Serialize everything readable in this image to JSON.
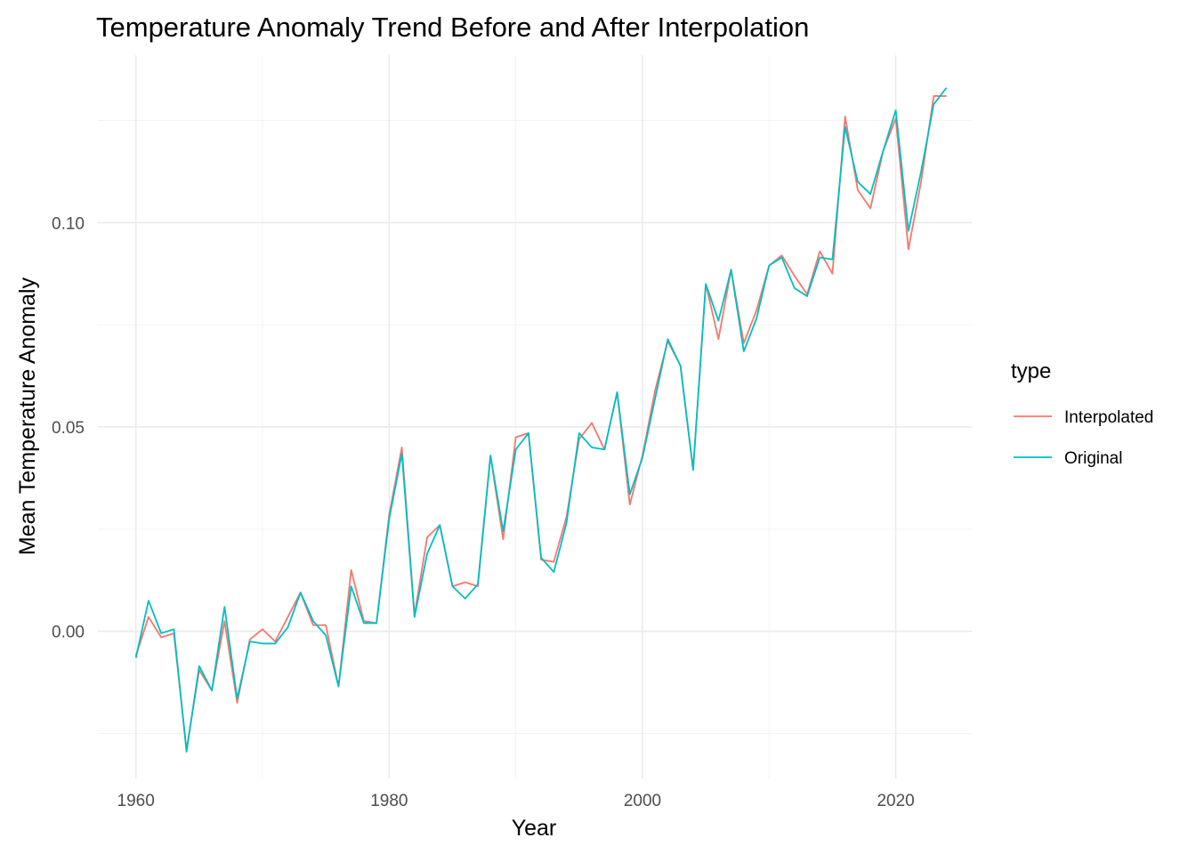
{
  "chart_data": {
    "type": "line",
    "title": "Temperature Anomaly Trend Before and After Interpolation",
    "xlabel": "Year",
    "ylabel": "Mean Temperature Anomaly",
    "xlim": [
      1957,
      2026
    ],
    "ylim": [
      -0.036,
      0.141
    ],
    "x_ticks": [
      1960,
      1980,
      2000,
      2020
    ],
    "x_tick_labels": [
      "1960",
      "1980",
      "2000",
      "2020"
    ],
    "y_ticks": [
      0.0,
      0.05,
      0.1
    ],
    "y_tick_labels": [
      "0.00",
      "0.05",
      "0.10"
    ],
    "grid": true,
    "legend": {
      "title": "type",
      "position": "right"
    },
    "x": [
      1960,
      1961,
      1962,
      1963,
      1964,
      1965,
      1966,
      1967,
      1968,
      1969,
      1970,
      1971,
      1972,
      1973,
      1974,
      1975,
      1976,
      1977,
      1978,
      1979,
      1980,
      1981,
      1982,
      1983,
      1984,
      1985,
      1986,
      1987,
      1988,
      1989,
      1990,
      1991,
      1992,
      1993,
      1994,
      1995,
      1996,
      1997,
      1998,
      1999,
      2000,
      2001,
      2002,
      2003,
      2004,
      2005,
      2006,
      2007,
      2008,
      2009,
      2010,
      2011,
      2012,
      2013,
      2014,
      2015,
      2016,
      2017,
      2018,
      2019,
      2020,
      2021,
      2022,
      2023,
      2024
    ],
    "series": [
      {
        "name": "Interpolated",
        "color": "#F8766D",
        "values": [
          -0.006,
          0.0035,
          -0.0015,
          -0.0005,
          -0.029,
          -0.0095,
          -0.0145,
          0.0025,
          -0.0175,
          -0.002,
          0.0005,
          -0.0025,
          0.0035,
          0.0095,
          0.0015,
          0.0015,
          -0.0135,
          0.015,
          0.0025,
          0.002,
          0.0285,
          0.045,
          0.004,
          0.023,
          0.026,
          0.011,
          0.012,
          0.011,
          0.043,
          0.0225,
          0.0475,
          0.0485,
          0.0175,
          0.017,
          0.028,
          0.047,
          0.051,
          0.0445,
          0.0585,
          0.031,
          0.043,
          0.059,
          0.071,
          0.065,
          0.0395,
          0.085,
          0.0715,
          0.0885,
          0.0705,
          0.0785,
          0.0895,
          0.092,
          0.087,
          0.0825,
          0.093,
          0.0875,
          0.126,
          0.108,
          0.1035,
          0.1175,
          0.1255,
          0.0935,
          0.11,
          0.131,
          0.131
        ]
      },
      {
        "name": "Original",
        "color": "#00BFC4",
        "values": [
          -0.0065,
          0.0075,
          -0.0005,
          0.0005,
          -0.0295,
          -0.0085,
          -0.0145,
          0.006,
          -0.0165,
          -0.0025,
          -0.003,
          -0.003,
          0.001,
          0.0095,
          0.0025,
          -0.001,
          -0.0135,
          0.011,
          0.002,
          0.002,
          0.0275,
          0.0435,
          0.0035,
          0.019,
          0.026,
          0.011,
          0.008,
          0.0115,
          0.043,
          0.0245,
          0.0445,
          0.0485,
          0.018,
          0.0145,
          0.0265,
          0.0485,
          0.045,
          0.0445,
          0.0585,
          0.0335,
          0.0425,
          0.057,
          0.0715,
          0.065,
          0.0395,
          0.085,
          0.076,
          0.0885,
          0.0685,
          0.0765,
          0.0895,
          0.0915,
          0.084,
          0.082,
          0.0915,
          0.091,
          0.1235,
          0.11,
          0.107,
          0.1175,
          0.1275,
          0.098,
          0.1125,
          0.129,
          0.133
        ]
      }
    ]
  }
}
